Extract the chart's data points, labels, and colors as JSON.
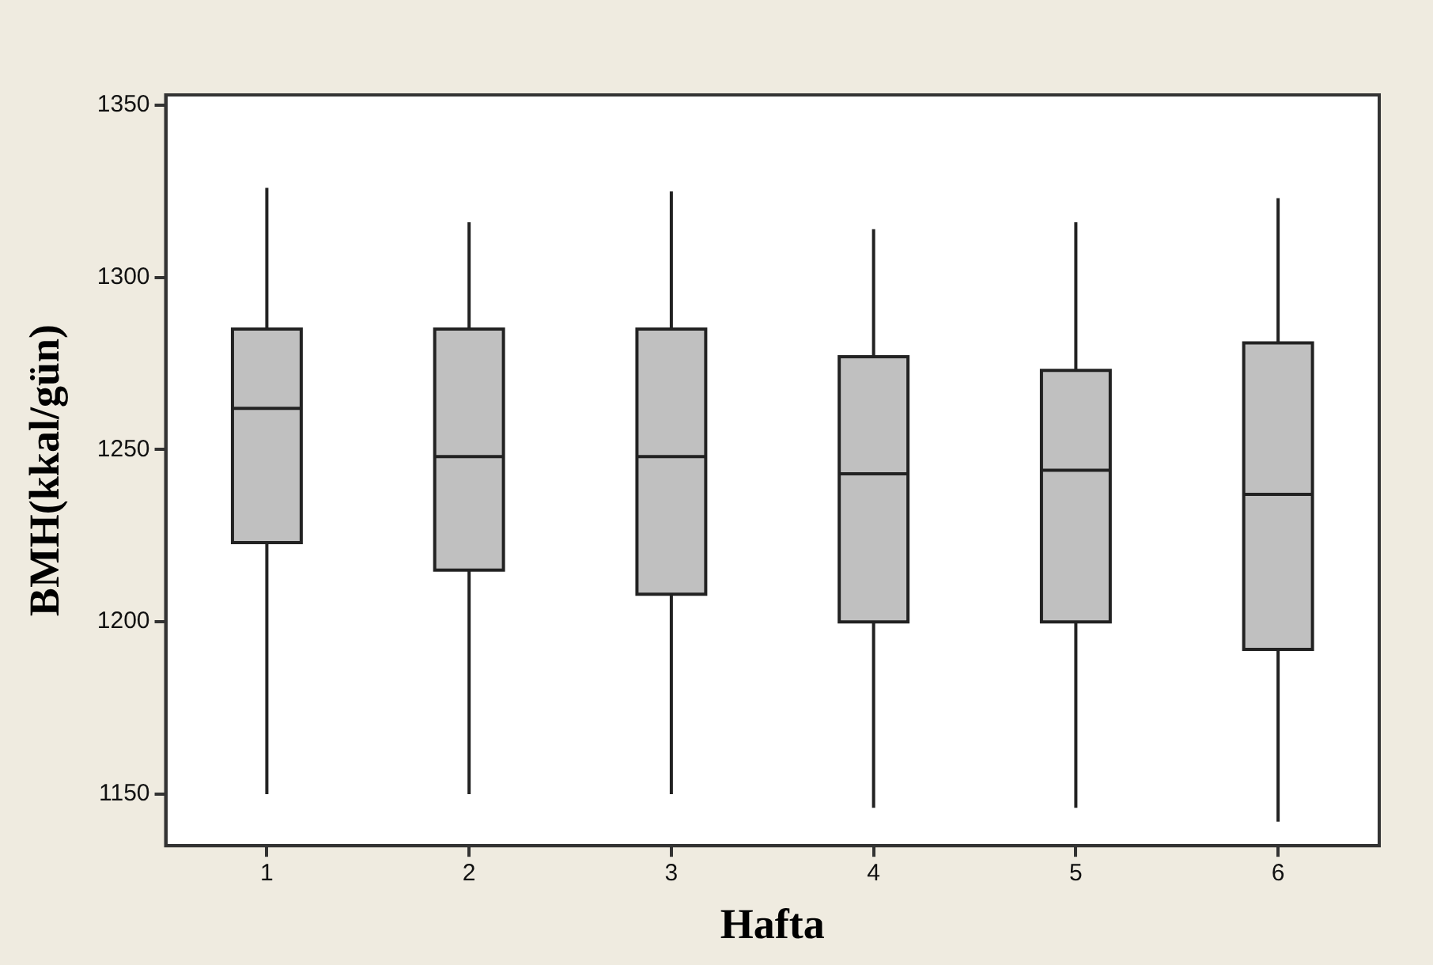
{
  "chart_data": {
    "type": "box",
    "xlabel": "Hafta",
    "ylabel": "BMH(kkal/gün)",
    "categories": [
      "1",
      "2",
      "3",
      "4",
      "5",
      "6"
    ],
    "color": "#c0c0c0",
    "ylim": [
      1135,
      1353
    ],
    "yticks": [
      1150,
      1200,
      1250,
      1300,
      1350
    ],
    "grid": false,
    "legend": false,
    "boxes": [
      {
        "low": 1150,
        "q1": 1223,
        "median": 1262,
        "q3": 1285,
        "high": 1326
      },
      {
        "low": 1150,
        "q1": 1215,
        "median": 1248,
        "q3": 1285,
        "high": 1316
      },
      {
        "low": 1150,
        "q1": 1208,
        "median": 1248,
        "q3": 1285,
        "high": 1325
      },
      {
        "low": 1146,
        "q1": 1200,
        "median": 1243,
        "q3": 1277,
        "high": 1314
      },
      {
        "low": 1146,
        "q1": 1200,
        "median": 1244,
        "q3": 1273,
        "high": 1316
      },
      {
        "low": 1142,
        "q1": 1192,
        "median": 1237,
        "q3": 1281,
        "high": 1323
      }
    ]
  }
}
